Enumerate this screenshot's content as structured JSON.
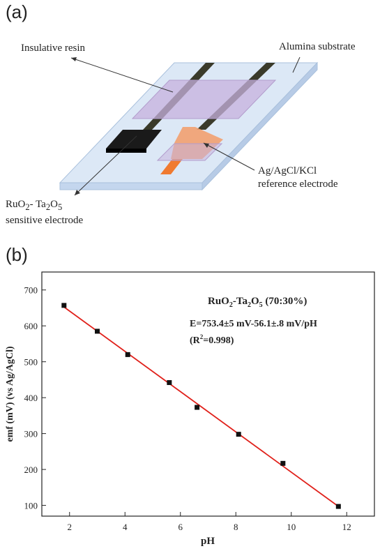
{
  "panel_a": {
    "label": "(a)",
    "callouts": {
      "resin": "Insulative resin",
      "substrate": "Alumina substrate",
      "ref_line1": "Ag/AgCl/KCl",
      "ref_line2": "reference electrode",
      "sens_line1_pre": "RuO",
      "sens_line1_sub1": "2",
      "sens_line1_mid": "- Ta",
      "sens_line1_sub2": "2",
      "sens_line1_o": "O",
      "sens_line1_sub3": "5",
      "sens_line2": "sensitive electrode"
    },
    "colors": {
      "substrate": "#dce8f6",
      "resin": "#c7b2dd",
      "tracks": "#3a3a2a",
      "sensitive_electrode": "#1a1a1a",
      "reference_electrode": "#f2a070"
    }
  },
  "panel_b": {
    "label": "(b)",
    "annotation": {
      "title_pre": "RuO",
      "title_sub1": "2",
      "title_mid": "-Ta",
      "title_sub2": "2",
      "title_o": "O",
      "title_sub3": "5",
      "title_post": " (70:30%)",
      "equation": "E=753.4±5 mV-56.1±.8 mV/pH",
      "r2_pre": "(R",
      "r2_sup": "2",
      "r2_post": "=0.998)"
    }
  },
  "chart_data": {
    "type": "scatter",
    "xlabel": "pH",
    "ylabel": "emf (mV) (vs Ag/AgCl)",
    "xlim": [
      1,
      13
    ],
    "ylim": [
      70,
      750
    ],
    "x_ticks": [
      2,
      4,
      6,
      8,
      10,
      12
    ],
    "y_ticks": [
      100,
      200,
      300,
      400,
      500,
      600,
      700
    ],
    "grid": false,
    "series": [
      {
        "points": [
          {
            "x": 1.8,
            "y": 657
          },
          {
            "x": 3.0,
            "y": 585
          },
          {
            "x": 4.1,
            "y": 520
          },
          {
            "x": 5.6,
            "y": 442
          },
          {
            "x": 6.6,
            "y": 373
          },
          {
            "x": 8.1,
            "y": 298
          },
          {
            "x": 9.7,
            "y": 217
          },
          {
            "x": 11.7,
            "y": 97
          }
        ],
        "marker_color": "#111111"
      }
    ],
    "fit_line": {
      "slope": -56.1,
      "intercept": 753.4,
      "x_range": [
        1.8,
        11.7
      ],
      "color": "#e0201a"
    }
  }
}
